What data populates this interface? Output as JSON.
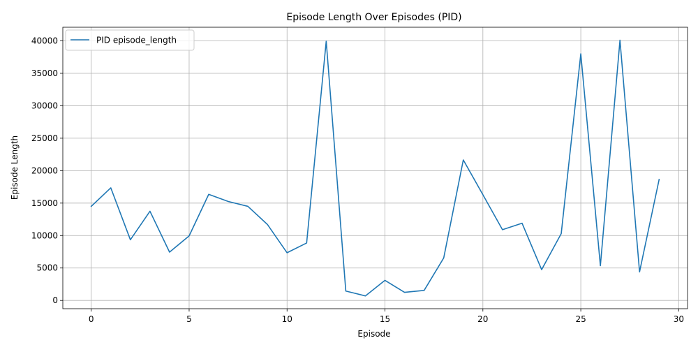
{
  "chart_data": {
    "type": "line",
    "title": "Episode Length Over Episodes (PID)",
    "xlabel": "Episode",
    "ylabel": "Episode Length",
    "xlim": [
      -1.45,
      30.45
    ],
    "ylim": [
      -1270,
      42100
    ],
    "xticks": [
      0,
      5,
      10,
      15,
      20,
      25,
      30
    ],
    "yticks": [
      0,
      5000,
      10000,
      15000,
      20000,
      25000,
      30000,
      35000,
      40000
    ],
    "grid": true,
    "legend_position": "top-left",
    "series": [
      {
        "name": "PID episode_length",
        "color": "#1f77b4",
        "x": [
          0,
          1,
          2,
          3,
          4,
          5,
          6,
          7,
          8,
          9,
          10,
          11,
          12,
          13,
          14,
          15,
          16,
          17,
          18,
          19,
          20,
          21,
          22,
          23,
          24,
          25,
          26,
          27,
          28,
          29
        ],
        "values": [
          14500,
          17350,
          9350,
          13750,
          7450,
          9950,
          16350,
          15250,
          14500,
          11700,
          7350,
          8850,
          39950,
          1450,
          700,
          3100,
          1250,
          1550,
          6550,
          21650,
          16300,
          10900,
          11900,
          4750,
          10300,
          38000,
          5350,
          40100,
          4400,
          18650
        ]
      }
    ]
  }
}
